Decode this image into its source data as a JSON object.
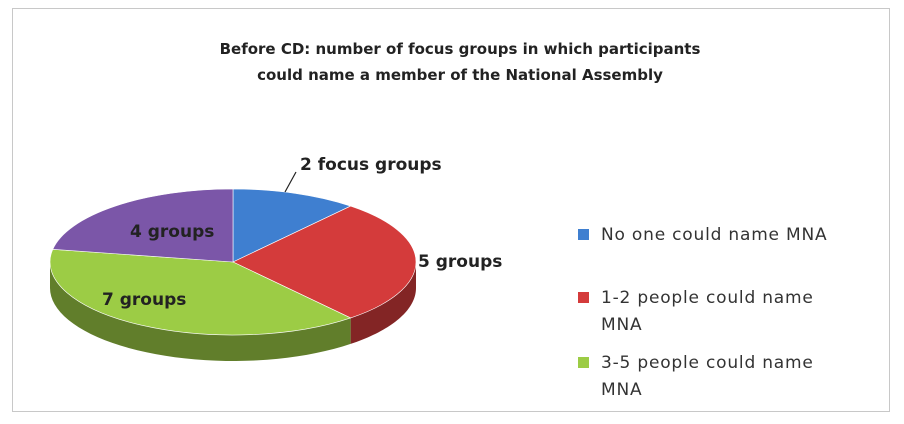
{
  "chart_data": {
    "type": "pie",
    "title": "Before CD: number of focus groups in which participants could name a member of the National Assembly",
    "categories": [
      "No one could name MNA",
      "1-2 people could name MNA",
      "3-5 people could name MNA",
      null
    ],
    "values": [
      2,
      5,
      7,
      4
    ],
    "value_labels": [
      "2 focus groups",
      "5 groups",
      "7 groups",
      "4 groups"
    ],
    "colors": [
      "#3f7fd0",
      "#d43b3b",
      "#9ccc45",
      "#7b56a8"
    ],
    "legend": "right"
  }
}
